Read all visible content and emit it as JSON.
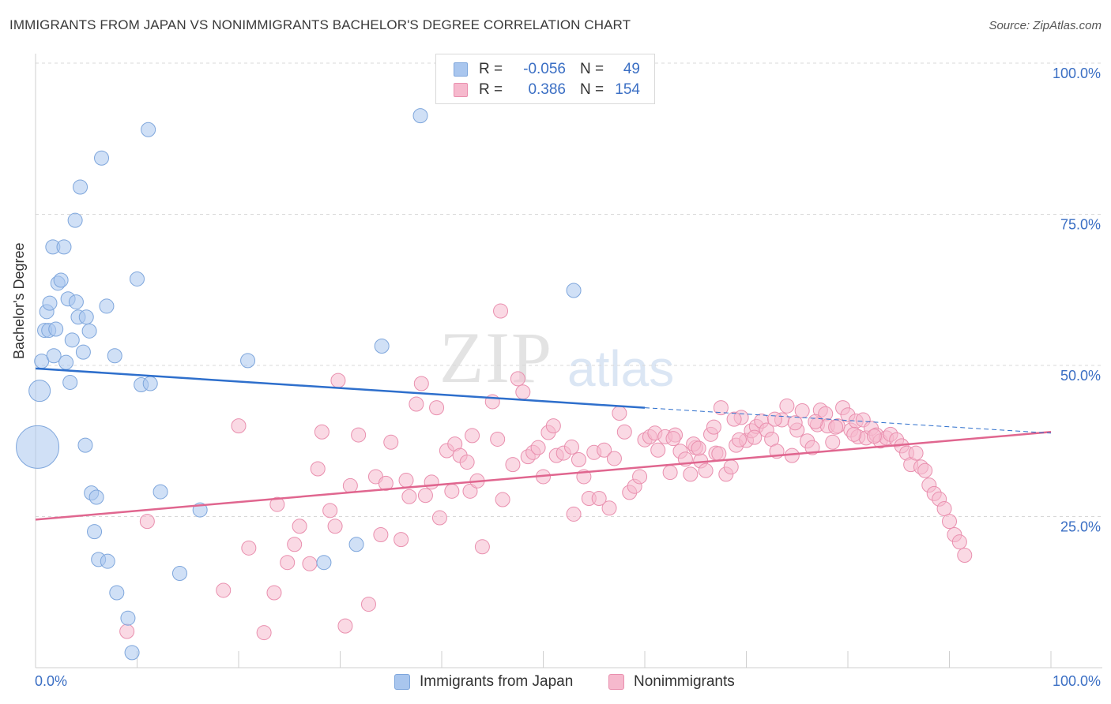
{
  "header": {
    "title": "IMMIGRANTS FROM JAPAN VS NONIMMIGRANTS BACHELOR'S DEGREE CORRELATION CHART",
    "source": "Source: ZipAtlas.com"
  },
  "watermark": {
    "zip": "ZIP",
    "atlas": "atlas"
  },
  "colors": {
    "blue_fill": "#a9c6ee",
    "blue_stroke": "#7ea6dc",
    "blue_line": "#2e6fcc",
    "pink_fill": "#f6b9cd",
    "pink_stroke": "#e98fae",
    "pink_line": "#e0668f",
    "axis_text": "#3b6fc4",
    "grid": "#d8d8d8"
  },
  "legend": {
    "rows": [
      {
        "r_label": "R =",
        "r_value": "-0.056",
        "n_label": "N =",
        "n_value": "49",
        "color": "#a9c6ee"
      },
      {
        "r_label": "R =",
        "r_value": "0.386",
        "n_label": "N =",
        "n_value": "154",
        "color": "#f6b9cd"
      }
    ]
  },
  "bottom_legend": {
    "japan": "Immigrants from Japan",
    "nonimm": "Nonimmigrants"
  },
  "chart_data": {
    "type": "scatter",
    "title": "IMMIGRANTS FROM JAPAN VS NONIMMIGRANTS BACHELOR'S DEGREE CORRELATION CHART",
    "xlabel": "",
    "ylabel": "Bachelor's Degree",
    "xlim": [
      0,
      100
    ],
    "ylim": [
      0,
      100
    ],
    "x_ticks": [
      "0.0%",
      "100.0%"
    ],
    "y_ticks": [
      "25.0%",
      "50.0%",
      "75.0%",
      "100.0%"
    ],
    "grid": true,
    "legend_position": "top-center",
    "series": [
      {
        "name": "Immigrants from Japan",
        "r": -0.056,
        "n": 49,
        "trend": {
          "x": [
            0,
            60
          ],
          "y": [
            49.5,
            43.0
          ],
          "dashed_to": [
            100,
            38.8
          ]
        },
        "points": [
          [
            0.2,
            36.5,
            3
          ],
          [
            0.4,
            45.8,
            1.5
          ],
          [
            0.6,
            50.7,
            1
          ],
          [
            0.9,
            55.8,
            1
          ],
          [
            1.1,
            58.9,
            1
          ],
          [
            1.3,
            55.8,
            1
          ],
          [
            1.4,
            60.3,
            1
          ],
          [
            1.7,
            69.6,
            1
          ],
          [
            1.8,
            51.6,
            1
          ],
          [
            2.0,
            56.0,
            1
          ],
          [
            2.2,
            63.6,
            1
          ],
          [
            2.5,
            64.1,
            1
          ],
          [
            2.8,
            69.6,
            1
          ],
          [
            3.0,
            50.5,
            1
          ],
          [
            3.2,
            61.0,
            1
          ],
          [
            3.4,
            47.2,
            1
          ],
          [
            3.6,
            54.2,
            1
          ],
          [
            3.9,
            74.0,
            1
          ],
          [
            4.0,
            60.5,
            1
          ],
          [
            4.2,
            58.0,
            1
          ],
          [
            4.4,
            79.5,
            1
          ],
          [
            4.7,
            52.2,
            1
          ],
          [
            4.9,
            36.8,
            1
          ],
          [
            5.0,
            58.0,
            1
          ],
          [
            5.3,
            55.7,
            1
          ],
          [
            5.5,
            28.9,
            1
          ],
          [
            5.8,
            22.5,
            1
          ],
          [
            6.0,
            28.2,
            1
          ],
          [
            6.2,
            17.9,
            1
          ],
          [
            6.5,
            84.3,
            1
          ],
          [
            7.0,
            59.8,
            1
          ],
          [
            7.1,
            17.6,
            1
          ],
          [
            7.8,
            51.6,
            1
          ],
          [
            8.0,
            12.4,
            1
          ],
          [
            9.1,
            8.2,
            1
          ],
          [
            9.5,
            2.5,
            1
          ],
          [
            10.0,
            64.3,
            1
          ],
          [
            10.4,
            46.8,
            1
          ],
          [
            11.1,
            89.0,
            1
          ],
          [
            11.3,
            47.0,
            1
          ],
          [
            12.3,
            29.1,
            1
          ],
          [
            14.2,
            15.6,
            1
          ],
          [
            16.2,
            26.1,
            1
          ],
          [
            20.9,
            50.8,
            1
          ],
          [
            28.4,
            17.4,
            1
          ],
          [
            31.6,
            20.4,
            1
          ],
          [
            34.1,
            53.2,
            1
          ],
          [
            37.9,
            91.3,
            1
          ],
          [
            53.0,
            62.4,
            1
          ]
        ]
      },
      {
        "name": "Nonimmigrants",
        "r": 0.386,
        "n": 154,
        "trend": {
          "x": [
            0,
            100
          ],
          "y": [
            24.5,
            39.0
          ]
        },
        "points": [
          [
            9.0,
            6.0
          ],
          [
            11.0,
            24.2
          ],
          [
            18.5,
            12.8
          ],
          [
            20.0,
            40.0
          ],
          [
            21.0,
            19.8
          ],
          [
            22.5,
            5.8
          ],
          [
            23.5,
            12.4
          ],
          [
            23.8,
            27.0
          ],
          [
            24.8,
            17.4
          ],
          [
            25.5,
            20.4
          ],
          [
            26.0,
            23.4
          ],
          [
            27.0,
            17.2
          ],
          [
            27.8,
            32.9
          ],
          [
            28.2,
            39.0
          ],
          [
            29.0,
            26.0
          ],
          [
            29.5,
            23.4
          ],
          [
            29.8,
            47.5
          ],
          [
            30.5,
            6.9
          ],
          [
            31.0,
            30.1
          ],
          [
            31.8,
            38.5
          ],
          [
            32.8,
            10.5
          ],
          [
            33.5,
            31.6
          ],
          [
            34.0,
            22.0
          ],
          [
            34.5,
            30.5
          ],
          [
            35.0,
            37.3
          ],
          [
            36.0,
            21.2
          ],
          [
            36.5,
            31.0
          ],
          [
            36.8,
            28.3
          ],
          [
            37.5,
            43.6
          ],
          [
            38.0,
            47.0
          ],
          [
            38.4,
            28.5
          ],
          [
            39.0,
            30.7
          ],
          [
            39.5,
            43.0
          ],
          [
            39.8,
            24.8
          ],
          [
            40.5,
            35.9
          ],
          [
            41.0,
            29.2
          ],
          [
            41.3,
            37.0
          ],
          [
            41.8,
            35.1
          ],
          [
            42.5,
            34.0
          ],
          [
            42.8,
            29.2
          ],
          [
            43.0,
            38.4
          ],
          [
            43.5,
            30.9
          ],
          [
            44.0,
            20.0
          ],
          [
            45.0,
            44.0
          ],
          [
            45.5,
            37.8
          ],
          [
            45.8,
            59.0
          ],
          [
            46.0,
            27.8
          ],
          [
            47.0,
            33.6
          ],
          [
            47.5,
            47.8
          ],
          [
            48.0,
            45.6
          ],
          [
            48.5,
            34.9
          ],
          [
            49.0,
            35.6
          ],
          [
            49.5,
            36.4
          ],
          [
            50.0,
            31.6
          ],
          [
            50.5,
            38.9
          ],
          [
            51.0,
            40.0
          ],
          [
            51.3,
            35.1
          ],
          [
            52.0,
            35.5
          ],
          [
            52.8,
            36.5
          ],
          [
            53.0,
            25.4
          ],
          [
            53.5,
            34.4
          ],
          [
            54.0,
            31.6
          ],
          [
            54.5,
            28.0
          ],
          [
            55.0,
            35.6
          ],
          [
            55.5,
            28.0
          ],
          [
            56.0,
            36.0
          ],
          [
            56.5,
            26.4
          ],
          [
            57.0,
            34.6
          ],
          [
            57.5,
            42.1
          ],
          [
            58.0,
            39.0
          ],
          [
            58.5,
            29.0
          ],
          [
            59.0,
            30.0
          ],
          [
            59.5,
            31.6
          ],
          [
            60.0,
            37.7
          ],
          [
            60.5,
            38.2
          ],
          [
            61.0,
            38.8
          ],
          [
            62.0,
            38.2
          ],
          [
            62.5,
            32.3
          ],
          [
            63.0,
            38.5
          ],
          [
            63.5,
            35.8
          ],
          [
            64.0,
            34.5
          ],
          [
            64.5,
            32.0
          ],
          [
            65.0,
            36.4
          ],
          [
            65.5,
            34.2
          ],
          [
            66.0,
            32.6
          ],
          [
            66.5,
            38.6
          ],
          [
            67.0,
            35.5
          ],
          [
            67.5,
            43.0
          ],
          [
            68.0,
            32.0
          ],
          [
            68.5,
            33.2
          ],
          [
            69.0,
            36.8
          ],
          [
            69.5,
            41.4
          ],
          [
            70.0,
            37.6
          ],
          [
            70.5,
            39.2
          ],
          [
            71.0,
            39.9
          ],
          [
            71.5,
            40.8
          ],
          [
            72.0,
            39.3
          ],
          [
            72.5,
            37.8
          ],
          [
            73.0,
            35.8
          ],
          [
            73.5,
            41.0
          ],
          [
            74.0,
            43.3
          ],
          [
            74.5,
            35.1
          ],
          [
            75.0,
            39.3
          ],
          [
            75.5,
            42.5
          ],
          [
            76.0,
            37.5
          ],
          [
            76.5,
            36.4
          ],
          [
            77.0,
            40.2
          ],
          [
            77.3,
            42.6
          ],
          [
            77.8,
            42.0
          ],
          [
            78.0,
            40.0
          ],
          [
            78.5,
            37.3
          ],
          [
            79.0,
            40.0
          ],
          [
            79.5,
            43.0
          ],
          [
            80.0,
            41.8
          ],
          [
            80.3,
            39.3
          ],
          [
            80.8,
            40.8
          ],
          [
            81.0,
            38.2
          ],
          [
            81.5,
            41.0
          ],
          [
            81.8,
            38.0
          ],
          [
            82.3,
            39.6
          ],
          [
            82.8,
            38.5
          ],
          [
            83.2,
            37.5
          ],
          [
            83.8,
            38.0
          ],
          [
            84.2,
            38.6
          ],
          [
            84.8,
            37.7
          ],
          [
            85.3,
            36.7
          ],
          [
            85.8,
            35.5
          ],
          [
            86.2,
            33.6
          ],
          [
            86.7,
            35.5
          ],
          [
            87.2,
            33.2
          ],
          [
            87.6,
            32.6
          ],
          [
            88.0,
            30.2
          ],
          [
            88.5,
            28.8
          ],
          [
            89.0,
            27.9
          ],
          [
            89.5,
            26.3
          ],
          [
            90.0,
            24.2
          ],
          [
            90.5,
            22.0
          ],
          [
            91.0,
            20.8
          ],
          [
            91.5,
            18.6
          ],
          [
            61.3,
            36.0
          ],
          [
            64.8,
            37.0
          ],
          [
            66.8,
            39.8
          ],
          [
            68.8,
            41.1
          ],
          [
            70.8,
            38.1
          ],
          [
            72.8,
            41.1
          ],
          [
            74.8,
            40.5
          ],
          [
            76.8,
            40.7
          ],
          [
            78.8,
            39.8
          ],
          [
            80.6,
            38.6
          ],
          [
            82.6,
            38.3
          ],
          [
            62.8,
            37.9
          ],
          [
            65.3,
            36.3
          ],
          [
            67.3,
            35.4
          ],
          [
            69.3,
            37.7
          ]
        ]
      }
    ]
  }
}
